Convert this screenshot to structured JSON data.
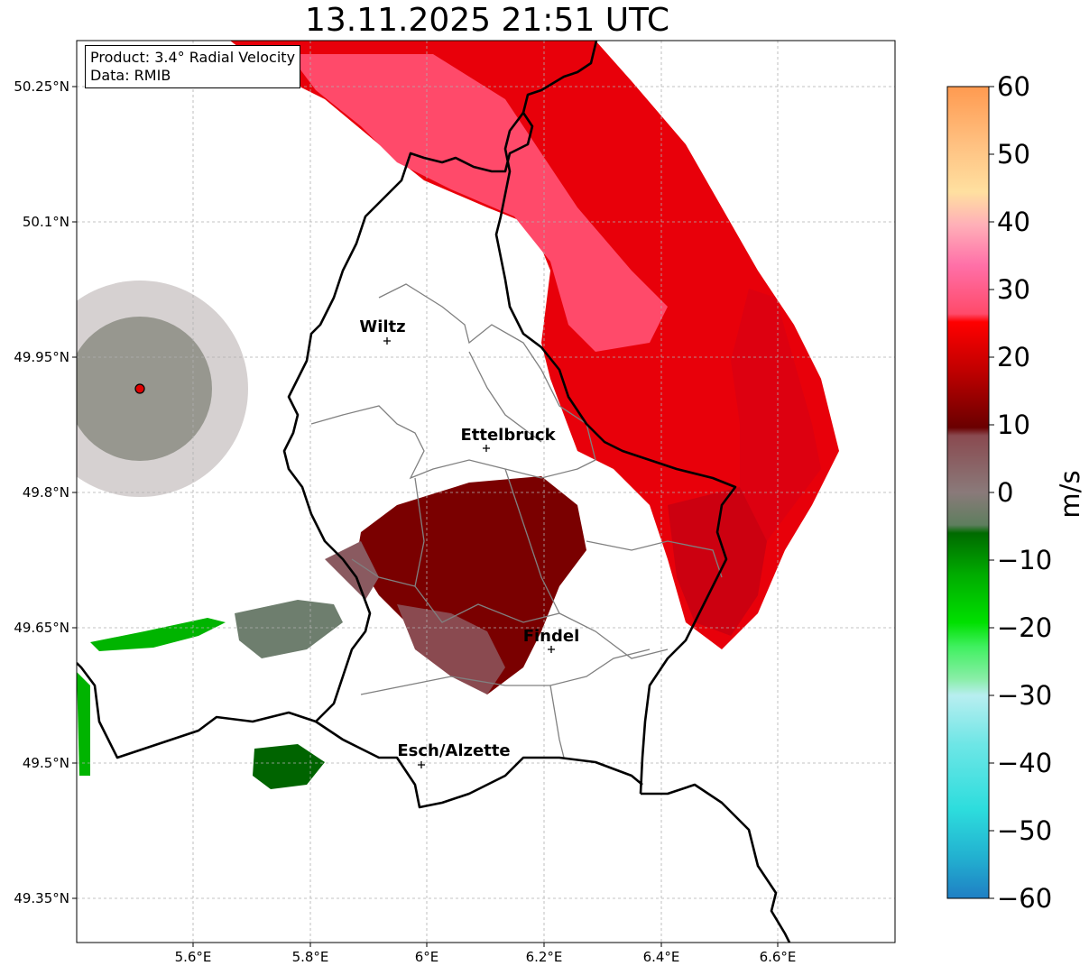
{
  "title": "13.11.2025 21:51 UTC",
  "infobox": {
    "product": "Product: 3.4° Radial Velocity",
    "data": "Data: RMIB"
  },
  "map": {
    "lon_range": [
      5.4,
      6.8
    ],
    "lat_range": [
      49.3,
      50.3
    ],
    "lon_ticks": [
      "5.6°E",
      "5.8°E",
      "6°E",
      "6.2°E",
      "6.4°E",
      "6.6°E"
    ],
    "lat_ticks": [
      "50.25°N",
      "50.1°N",
      "49.95°N",
      "49.8°N",
      "49.65°N",
      "49.5°N",
      "49.35°N"
    ],
    "radar_site": {
      "lon": 5.505,
      "lat": 49.914
    },
    "cities": [
      {
        "name": "Wiltz",
        "lon": 5.93,
        "lat": 49.966
      },
      {
        "name": "Ettelbruck",
        "lon": 6.1,
        "lat": 49.847
      },
      {
        "name": "Findel",
        "lon": 6.21,
        "lat": 49.626
      },
      {
        "name": "Esch/Alzette",
        "lon": 5.99,
        "lat": 49.496
      }
    ]
  },
  "colorbar": {
    "unit": "m/s",
    "min": -60,
    "max": 60,
    "ticks": [
      "60",
      "50",
      "40",
      "30",
      "20",
      "10",
      "0",
      "−10",
      "−20",
      "−30",
      "−40",
      "−50",
      "−60"
    ],
    "colors": {
      "pos_high": "#ffa050",
      "pos_pink": "#ff4a6a",
      "pos_red": "#ee0000",
      "pos_dark": "#7a0000",
      "zero": "#8a7a7a",
      "neg_green": "#006400",
      "neg_light": "#88ee99",
      "neg_cyan": "#30dddd",
      "neg_blue": "#2080c0"
    }
  }
}
